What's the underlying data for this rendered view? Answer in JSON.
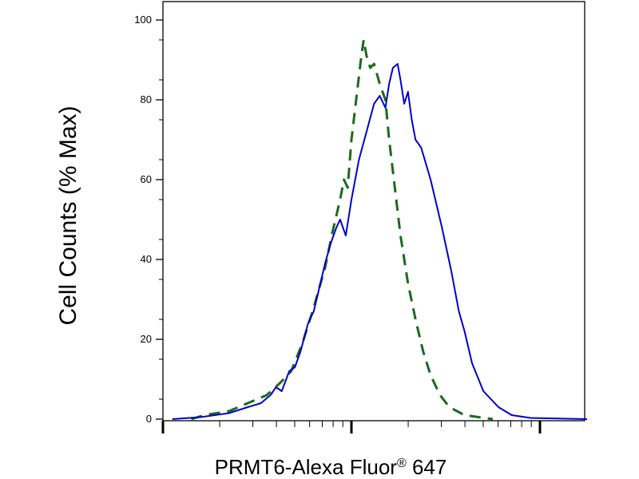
{
  "chart_data": {
    "type": "line",
    "xlabel": "PRMT6-Alexa Fluor",
    "xlabel_superscript": "®",
    "xlabel_suffix": " 647",
    "ylabel": "Cell Counts (% Max)",
    "x_scale": "log",
    "x_range_decades": [
      0,
      2.25
    ],
    "ylim": [
      0,
      100
    ],
    "y_ticks": [
      0,
      20,
      40,
      60,
      80,
      100
    ],
    "grid": false,
    "legend": "none",
    "series": [
      {
        "style": "dashed",
        "color": "#1a6b1a",
        "points": [
          [
            0.15,
            0
          ],
          [
            0.22,
            1
          ],
          [
            0.35,
            2
          ],
          [
            0.45,
            4
          ],
          [
            0.55,
            6
          ],
          [
            0.62,
            9
          ],
          [
            0.68,
            12
          ],
          [
            0.74,
            19
          ],
          [
            0.8,
            28
          ],
          [
            0.86,
            38
          ],
          [
            0.9,
            47
          ],
          [
            0.94,
            55
          ],
          [
            0.96,
            60
          ],
          [
            0.98,
            58
          ],
          [
            1.0,
            70
          ],
          [
            1.03,
            82
          ],
          [
            1.05,
            90
          ],
          [
            1.065,
            95
          ],
          [
            1.08,
            91
          ],
          [
            1.1,
            88
          ],
          [
            1.12,
            89
          ],
          [
            1.15,
            84
          ],
          [
            1.18,
            80
          ],
          [
            1.2,
            70
          ],
          [
            1.23,
            58
          ],
          [
            1.26,
            46
          ],
          [
            1.3,
            34
          ],
          [
            1.34,
            25
          ],
          [
            1.38,
            17
          ],
          [
            1.42,
            11
          ],
          [
            1.47,
            6
          ],
          [
            1.52,
            3
          ],
          [
            1.6,
            1
          ],
          [
            1.75,
            0
          ]
        ]
      },
      {
        "style": "solid",
        "color": "#0000cc",
        "points": [
          [
            0.05,
            0
          ],
          [
            0.2,
            0.5
          ],
          [
            0.35,
            1.5
          ],
          [
            0.45,
            3
          ],
          [
            0.52,
            4
          ],
          [
            0.57,
            6
          ],
          [
            0.6,
            8
          ],
          [
            0.63,
            7
          ],
          [
            0.67,
            12
          ],
          [
            0.7,
            13
          ],
          [
            0.73,
            17
          ],
          [
            0.77,
            24
          ],
          [
            0.8,
            27
          ],
          [
            0.83,
            33
          ],
          [
            0.86,
            39
          ],
          [
            0.89,
            44
          ],
          [
            0.92,
            48
          ],
          [
            0.94,
            50
          ],
          [
            0.97,
            46
          ],
          [
            1.0,
            55
          ],
          [
            1.04,
            65
          ],
          [
            1.08,
            72
          ],
          [
            1.12,
            79
          ],
          [
            1.15,
            81
          ],
          [
            1.18,
            78
          ],
          [
            1.2,
            84
          ],
          [
            1.22,
            88
          ],
          [
            1.245,
            89
          ],
          [
            1.26,
            85
          ],
          [
            1.28,
            79
          ],
          [
            1.3,
            82
          ],
          [
            1.32,
            75
          ],
          [
            1.34,
            70
          ],
          [
            1.37,
            68
          ],
          [
            1.42,
            60
          ],
          [
            1.48,
            48
          ],
          [
            1.53,
            37
          ],
          [
            1.57,
            27
          ],
          [
            1.6,
            22
          ],
          [
            1.64,
            14
          ],
          [
            1.7,
            7
          ],
          [
            1.78,
            3
          ],
          [
            1.85,
            1
          ],
          [
            1.95,
            0.3
          ],
          [
            2.25,
            0
          ]
        ]
      }
    ]
  }
}
